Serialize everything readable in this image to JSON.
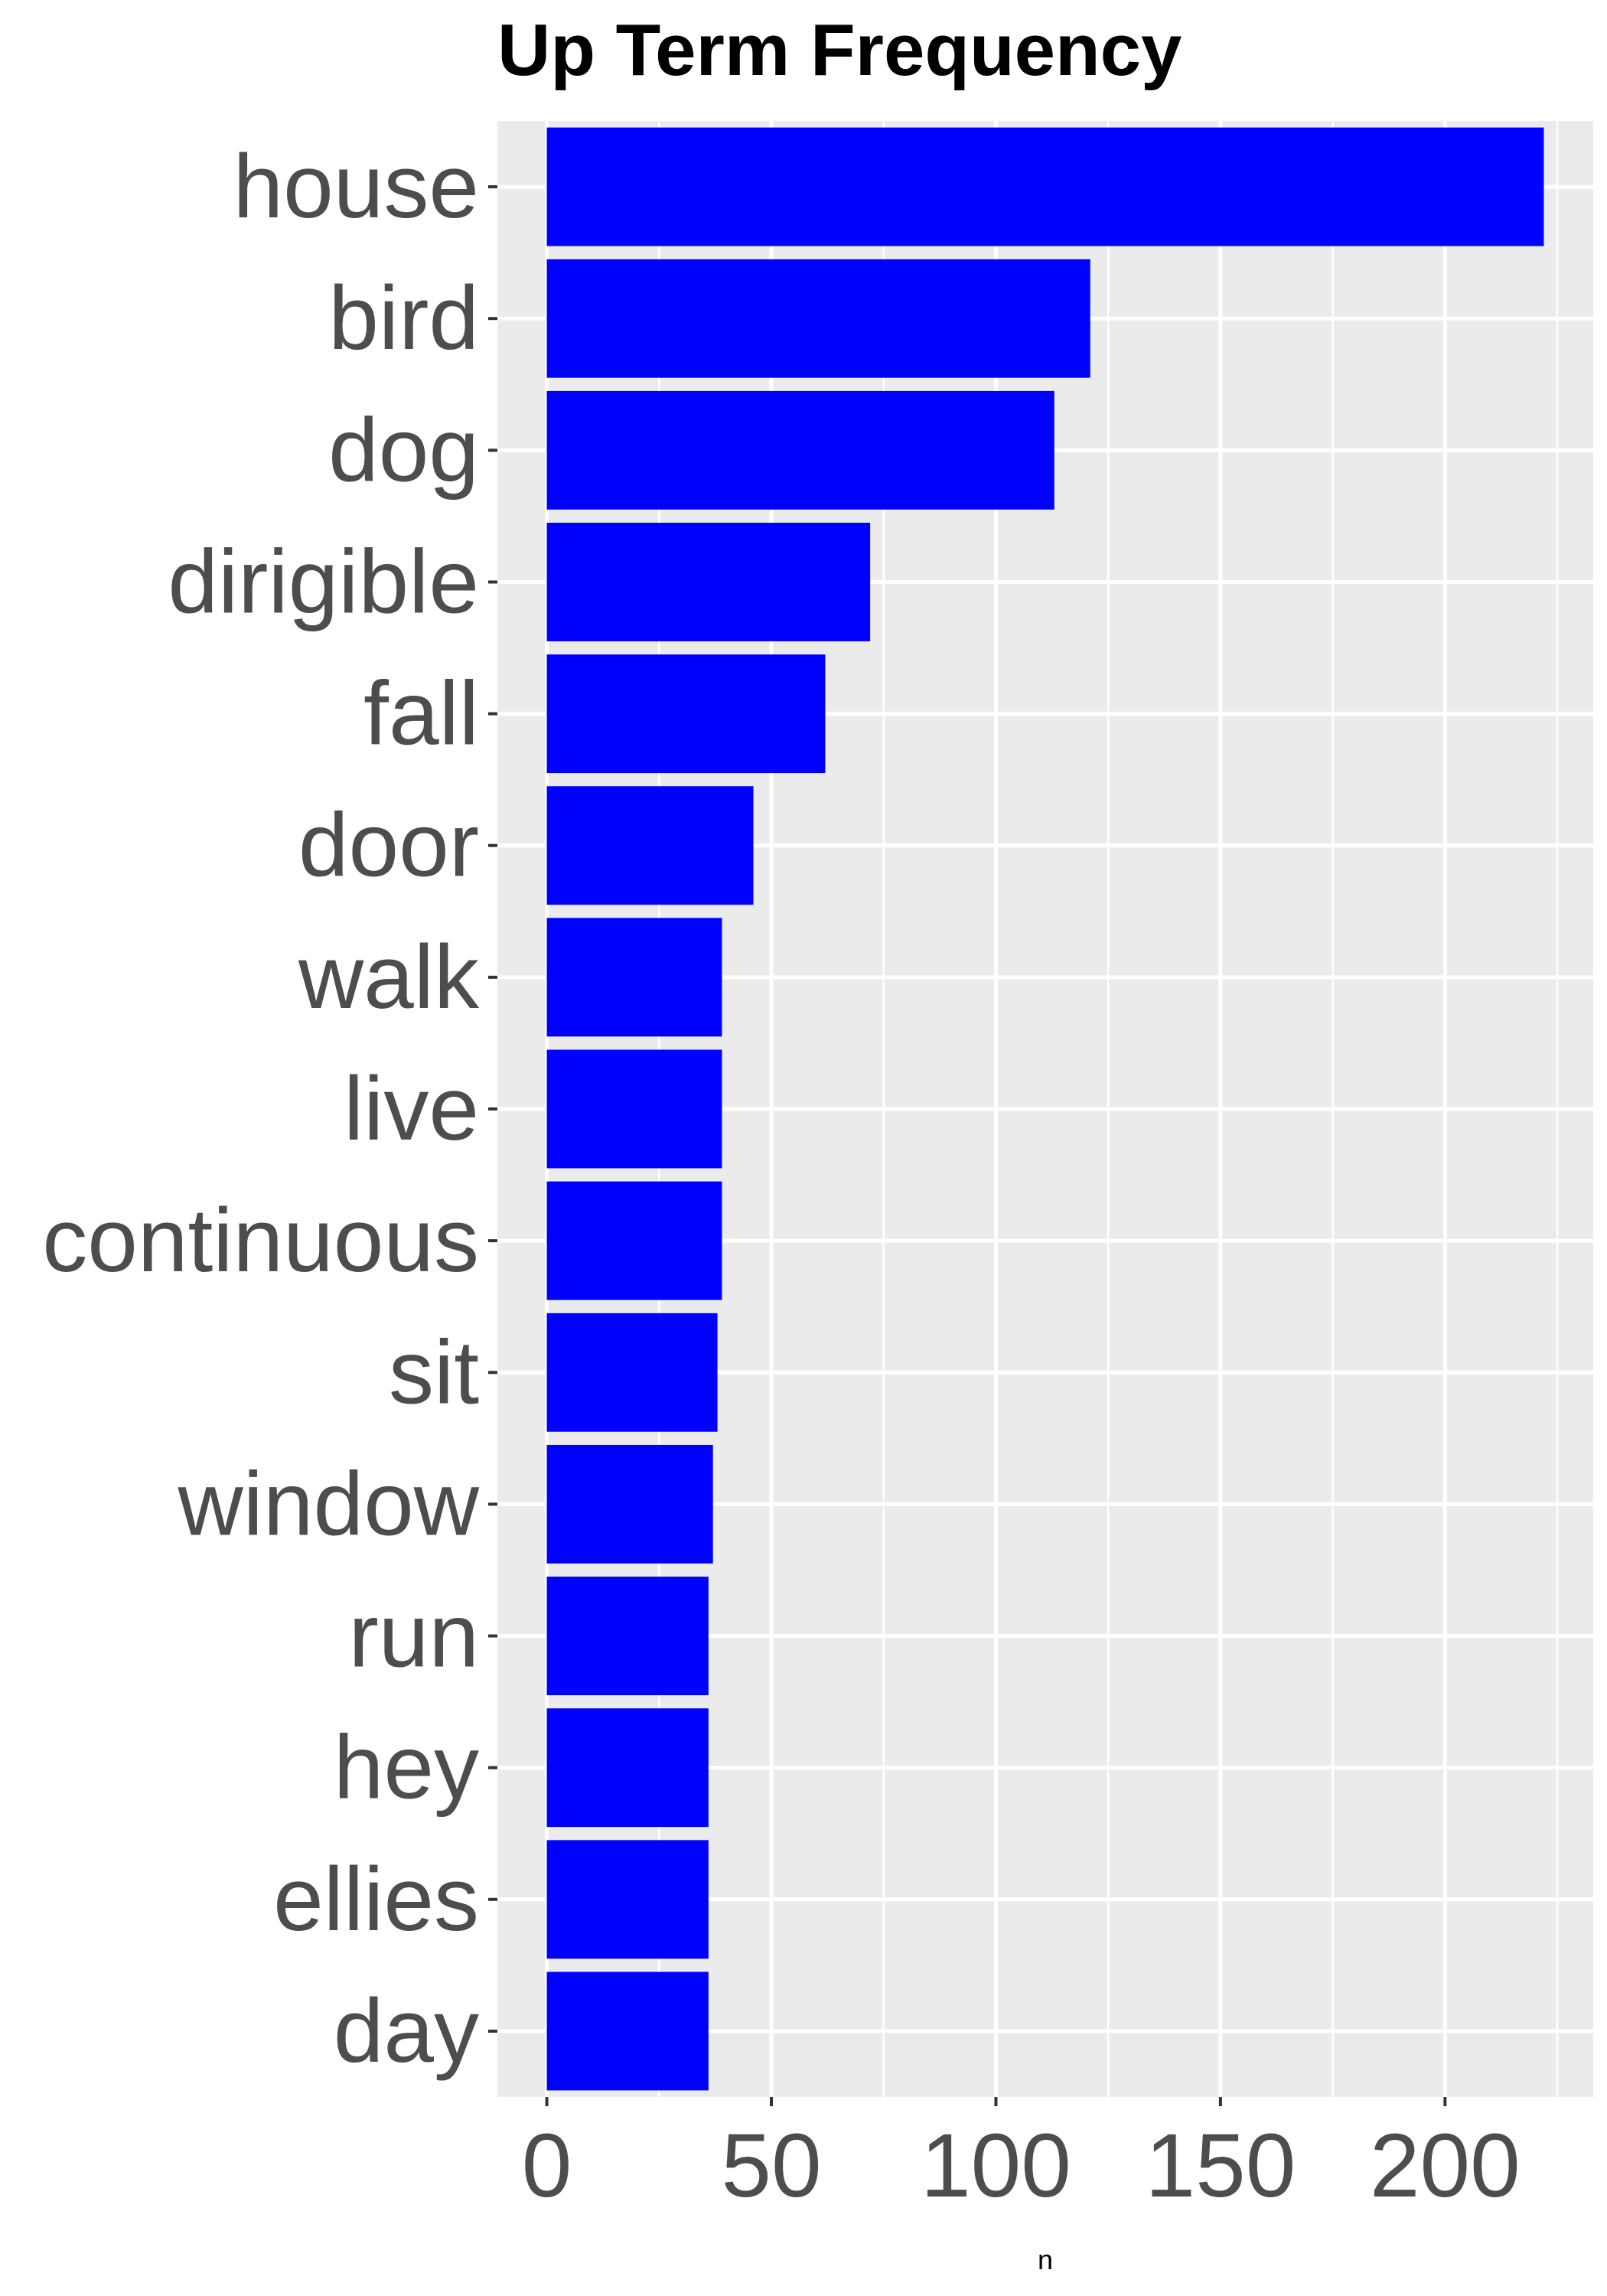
{
  "chart_data": {
    "type": "bar",
    "orientation": "horizontal",
    "title": "Up Term Frequency",
    "xlabel": "n",
    "ylabel": "",
    "categories": [
      "house",
      "bird",
      "dog",
      "dirigible",
      "fall",
      "door",
      "walk",
      "live",
      "continuous",
      "sit",
      "window",
      "run",
      "hey",
      "ellies",
      "day"
    ],
    "values": [
      222,
      121,
      113,
      72,
      62,
      46,
      39,
      39,
      39,
      38,
      37,
      36,
      36,
      36,
      36
    ],
    "xlim": [
      -11,
      233
    ],
    "xticks": [
      "0",
      "50",
      "100",
      "150",
      "200"
    ],
    "grid": true,
    "legend": "none",
    "colors": {
      "bar": "#0000ff",
      "panel": "#ebebeb",
      "grid": "#ffffff",
      "text": "#4d4d4d"
    }
  }
}
